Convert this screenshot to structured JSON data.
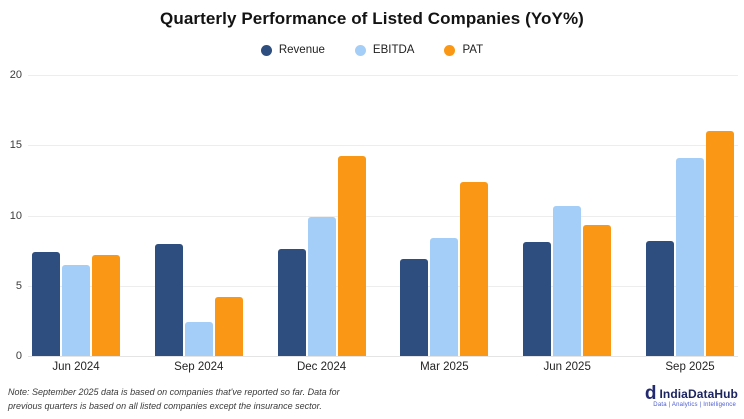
{
  "title": "Quarterly Performance of Listed Companies (YoY%)",
  "legend": [
    {
      "label": "Revenue",
      "color": "#2D4E7E"
    },
    {
      "label": "EBITDA",
      "color": "#A4CEF8"
    },
    {
      "label": "PAT",
      "color": "#FA9815"
    }
  ],
  "chart_data": {
    "type": "bar",
    "title": "Quarterly Performance of Listed Companies (YoY%)",
    "categories": [
      "Jun 2024",
      "Sep 2024",
      "Dec 2024",
      "Mar 2025",
      "Jun 2025",
      "Sep 2025"
    ],
    "series": [
      {
        "name": "Revenue",
        "color": "#2D4E7E",
        "values": [
          7.4,
          8.0,
          7.6,
          6.9,
          8.1,
          8.2
        ]
      },
      {
        "name": "EBITDA",
        "color": "#A4CEF8",
        "values": [
          6.5,
          2.4,
          9.9,
          8.4,
          10.7,
          14.1
        ]
      },
      {
        "name": "PAT",
        "color": "#FA9815",
        "values": [
          7.2,
          4.2,
          14.2,
          12.4,
          9.3,
          16.0
        ]
      }
    ],
    "xlabel": "",
    "ylabel": "",
    "ylim": [
      0,
      20
    ],
    "yticks": [
      0,
      5,
      10,
      15,
      20
    ],
    "grid": true,
    "legend_position": "top"
  },
  "note": {
    "line1": "Note: September 2025 data is based on companies that've reported so far. Data for",
    "line2": "previous quarters is based on all listed companies except the insurance sector."
  },
  "branding": {
    "icon_glyph": "d",
    "name": "IndiaDataHub",
    "tagline": "Data | Analytics | Intelligence",
    "name_color": "#1d2560",
    "tagline_color": "#4a5bd0"
  }
}
